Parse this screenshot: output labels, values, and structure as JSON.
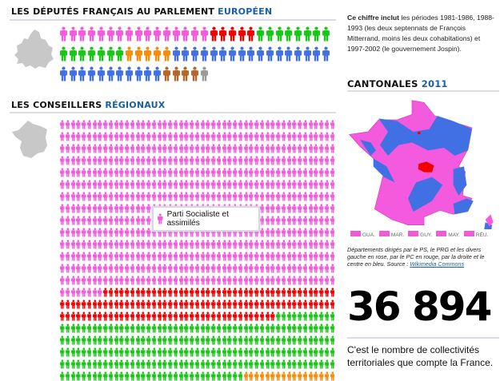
{
  "deputes": {
    "title": "LES DÉPUTÉS FRANÇAIS AU PARLEMENT",
    "title_accent": "EUROPÉEN",
    "groups": [
      {
        "color": "#f45ade",
        "count": 16
      },
      {
        "color": "#f20000",
        "count": 5
      },
      {
        "color": "#16c814",
        "count": 15
      },
      {
        "color": "#f78c0a",
        "count": 5
      },
      {
        "color": "#4070e4",
        "count": 28
      },
      {
        "color": "#b4662a",
        "count": 4
      },
      {
        "color": "#9a9a9a",
        "count": 1
      }
    ]
  },
  "conseillers": {
    "title": "LES CONSEILLERS",
    "title_accent": "RÉGIONAUX",
    "groups": [
      {
        "color": "#f45ade",
        "count": 722
      },
      {
        "color": "#f20000",
        "count": 134
      },
      {
        "color": "#16c814",
        "count": 249
      },
      {
        "color": "#f78c0a",
        "count": 17
      }
    ],
    "tooltip": "Parti Socialiste et assimilés",
    "tooltip_color": "#f45ade"
  },
  "note": {
    "bold": "Ce chiffre inclut",
    "text": " les périodes 1981-1986, 1988-1993 (les deux septennats de François Mitterrand, moins les deux cohabitations) et 1997-2002 (le gouvernement Jospin)."
  },
  "cantonales": {
    "title": "CANTONALES",
    "title_accent": "2011",
    "legend": [
      "GUA.",
      "MAR.",
      "GUY.",
      "MAY.",
      "RÉU."
    ],
    "caption": "Départements dirigés par le PS, le PRG et les divers gauche en rose, par le PC en rouge, par la droite et le centre en bleu. Source : ",
    "source_link": "Wikimedia Commons",
    "colors": {
      "left": "#f45ade",
      "communist": "#f20000",
      "right": "#4070e4"
    }
  },
  "stat": {
    "value": "36 894",
    "text": "C'est le nombre de collectivités territoriales que compte la France."
  }
}
